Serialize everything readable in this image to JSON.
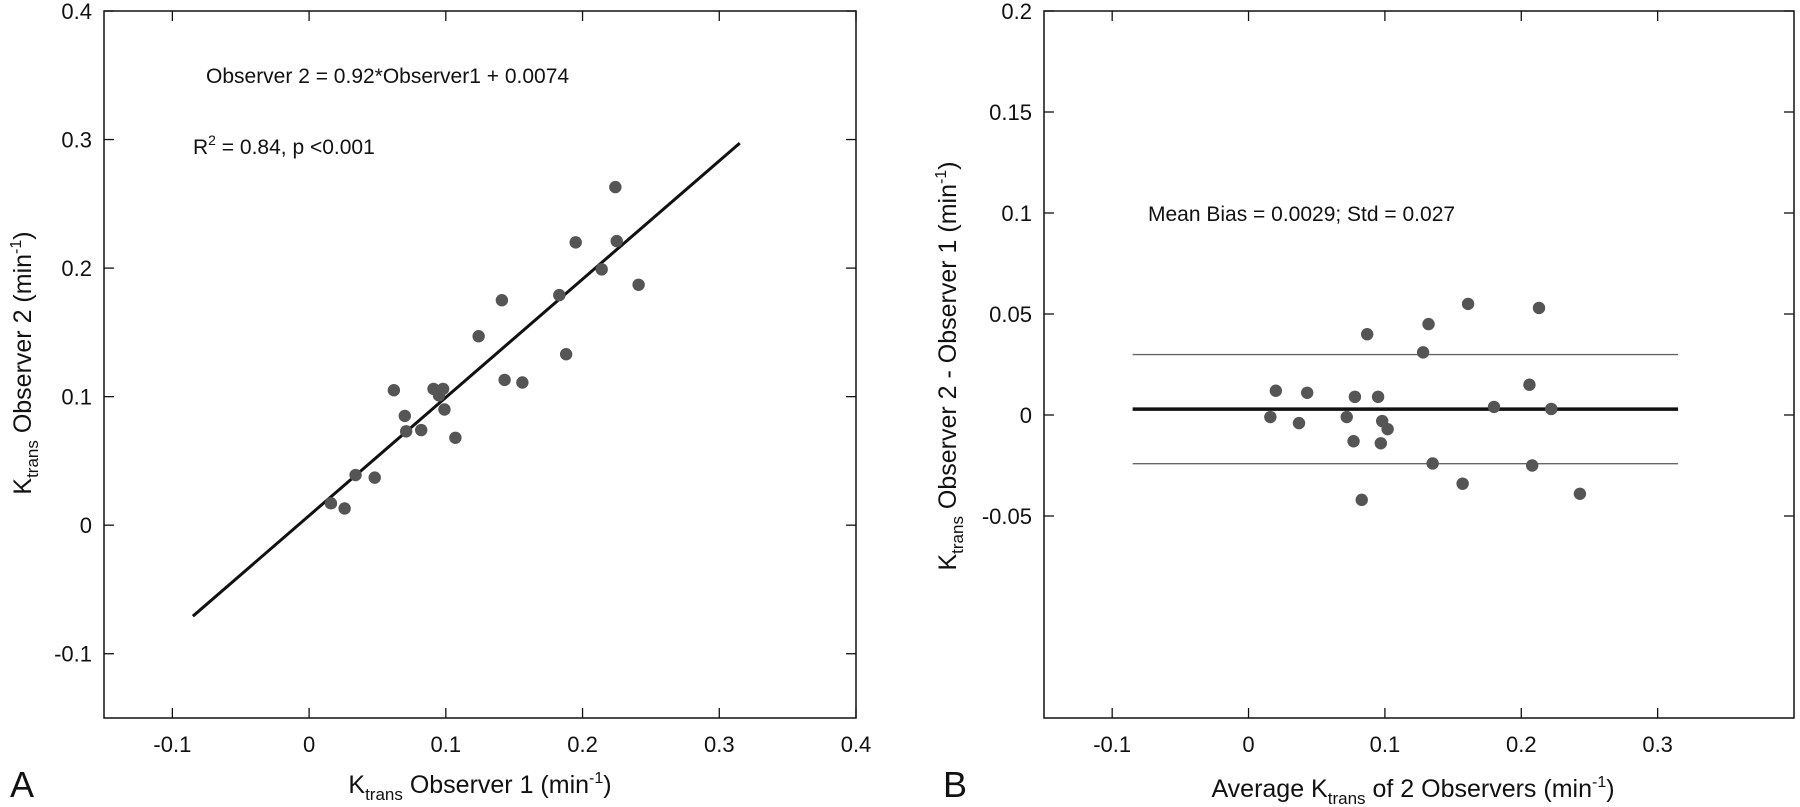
{
  "chart_data": [
    {
      "type": "scatter",
      "panel_label": "A",
      "xlabel_parts": [
        "K",
        "trans",
        " Observer 1 (min",
        "-1",
        ")"
      ],
      "ylabel_parts": [
        "K",
        "trans",
        " Observer 2 (min",
        "-1",
        ")"
      ],
      "xlim": [
        -0.15,
        0.4
      ],
      "ylim": [
        -0.15,
        0.4
      ],
      "xticks": [
        -0.1,
        0,
        0.1,
        0.2,
        0.3,
        0.4
      ],
      "xtick_labels": [
        "-0.1",
        "0",
        "0.1",
        "0.2",
        "0.3",
        "0.4"
      ],
      "yticks": [
        -0.1,
        0,
        0.1,
        0.2,
        0.3,
        0.4
      ],
      "ytick_labels": [
        "-0.1",
        "0",
        "0.1",
        "0.2",
        "0.3",
        "0.4"
      ],
      "grid": false,
      "annotations": {
        "equation": "Observer 2 = 0.92*Observer1 + 0.0074",
        "r2_prefix": "R",
        "r2_sup": "2",
        "r2_rest": " = 0.84, p <0.001"
      },
      "regression": {
        "slope": 0.92,
        "intercept": 0.0074,
        "x_range": [
          -0.085,
          0.315
        ]
      },
      "points": [
        [
          0.016,
          0.017
        ],
        [
          0.026,
          0.013
        ],
        [
          0.034,
          0.039
        ],
        [
          0.048,
          0.037
        ],
        [
          0.062,
          0.105
        ],
        [
          0.07,
          0.085
        ],
        [
          0.071,
          0.073
        ],
        [
          0.082,
          0.074
        ],
        [
          0.091,
          0.106
        ],
        [
          0.095,
          0.101
        ],
        [
          0.098,
          0.106
        ],
        [
          0.099,
          0.09
        ],
        [
          0.107,
          0.068
        ],
        [
          0.124,
          0.147
        ],
        [
          0.141,
          0.175
        ],
        [
          0.143,
          0.113
        ],
        [
          0.156,
          0.111
        ],
        [
          0.183,
          0.179
        ],
        [
          0.188,
          0.133
        ],
        [
          0.195,
          0.22
        ],
        [
          0.214,
          0.199
        ],
        [
          0.224,
          0.263
        ],
        [
          0.225,
          0.221
        ],
        [
          0.241,
          0.187
        ]
      ]
    },
    {
      "type": "scatter",
      "panel_label": "B",
      "xlabel_parts": [
        "Average K",
        "trans",
        " of 2 Observers (min",
        "-1",
        ")"
      ],
      "ylabel_parts": [
        "K",
        "trans",
        " Observer 2 - Observer 1 (min",
        "-1",
        ")"
      ],
      "xlim": [
        -0.15,
        0.4
      ],
      "ylim": [
        -0.15,
        0.2
      ],
      "xticks": [
        -0.1,
        0,
        0.1,
        0.2,
        0.3
      ],
      "xtick_labels": [
        "-0.1",
        "0",
        "0.1",
        "0.2",
        "0.3"
      ],
      "yticks": [
        -0.05,
        0,
        0.05,
        0.1,
        0.15,
        0.2
      ],
      "ytick_labels": [
        "-0.05",
        "0",
        "0.05",
        "0.1",
        "0.15",
        "0.2"
      ],
      "grid": false,
      "annotations": {
        "bias_text": "Mean Bias = 0.0029; Std = 0.027"
      },
      "mean_bias": 0.0029,
      "limits_of_agreement": [
        0.0299,
        -0.0241
      ],
      "reference_x_range": [
        -0.085,
        0.315
      ],
      "points": [
        [
          0.016,
          -0.001
        ],
        [
          0.02,
          0.012
        ],
        [
          0.037,
          -0.004
        ],
        [
          0.043,
          0.011
        ],
        [
          0.072,
          -0.001
        ],
        [
          0.077,
          -0.013
        ],
        [
          0.078,
          0.009
        ],
        [
          0.083,
          -0.042
        ],
        [
          0.087,
          0.04
        ],
        [
          0.095,
          0.009
        ],
        [
          0.097,
          -0.014
        ],
        [
          0.098,
          -0.003
        ],
        [
          0.102,
          -0.007
        ],
        [
          0.128,
          0.031
        ],
        [
          0.132,
          0.045
        ],
        [
          0.135,
          -0.024
        ],
        [
          0.157,
          -0.034
        ],
        [
          0.161,
          0.055
        ],
        [
          0.18,
          0.004
        ],
        [
          0.206,
          0.015
        ],
        [
          0.208,
          -0.025
        ],
        [
          0.213,
          0.053
        ],
        [
          0.222,
          0.003
        ],
        [
          0.243,
          -0.039
        ]
      ]
    }
  ],
  "style": {
    "point_color": "#555555",
    "line_color": "#111111",
    "loa_color": "#666666"
  }
}
